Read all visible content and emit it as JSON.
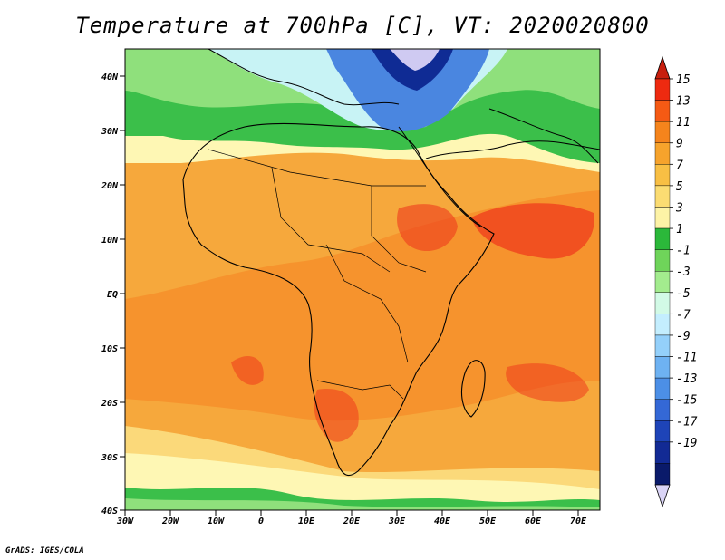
{
  "title": "Temperature at 700hPa [C], VT: 2020020800",
  "footer": "GrADS: IGES/COLA",
  "map": {
    "lon_ticks": [
      "30W",
      "20W",
      "10W",
      "0",
      "10E",
      "20E",
      "30E",
      "40E",
      "50E",
      "60E",
      "70E"
    ],
    "lat_ticks": [
      "40N",
      "30N",
      "20N",
      "10N",
      "EQ",
      "10S",
      "20S",
      "30S",
      "40S"
    ],
    "colors": {
      "very_hot": "#ef3b1c",
      "hot": "#f58220",
      "warm": "#f6a83c",
      "mild": "#fbd97a",
      "cool": "#fef7b4",
      "green": "#3bbf4a",
      "lightgreen": "#8fe07c",
      "paleblue": "#c8f3f5",
      "blue": "#4a86e0",
      "darkblue": "#0f2b94",
      "lavender": "#cfcaf2"
    }
  },
  "colorbar": {
    "labels": [
      "15",
      "13",
      "11",
      "9",
      "7",
      "5",
      "3",
      "1",
      "-1",
      "-3",
      "-5",
      "-7",
      "-9",
      "-11",
      "-13",
      "-15",
      "-17",
      "-19"
    ],
    "colors": [
      "#ee2a10",
      "#f55a14",
      "#f5841c",
      "#f6a32c",
      "#f8bf44",
      "#fbdc72",
      "#fdf3a6",
      "#2bb83a",
      "#6fd45a",
      "#a3ec8e",
      "#d2fae6",
      "#c4eefe",
      "#94d0fa",
      "#6eb2f2",
      "#4c8fe6",
      "#3468d6",
      "#1e44b8",
      "#122a94",
      "#0a1a6a"
    ],
    "top_triangle": "#c81e0e",
    "bottom_triangle": "#dad4f6"
  }
}
